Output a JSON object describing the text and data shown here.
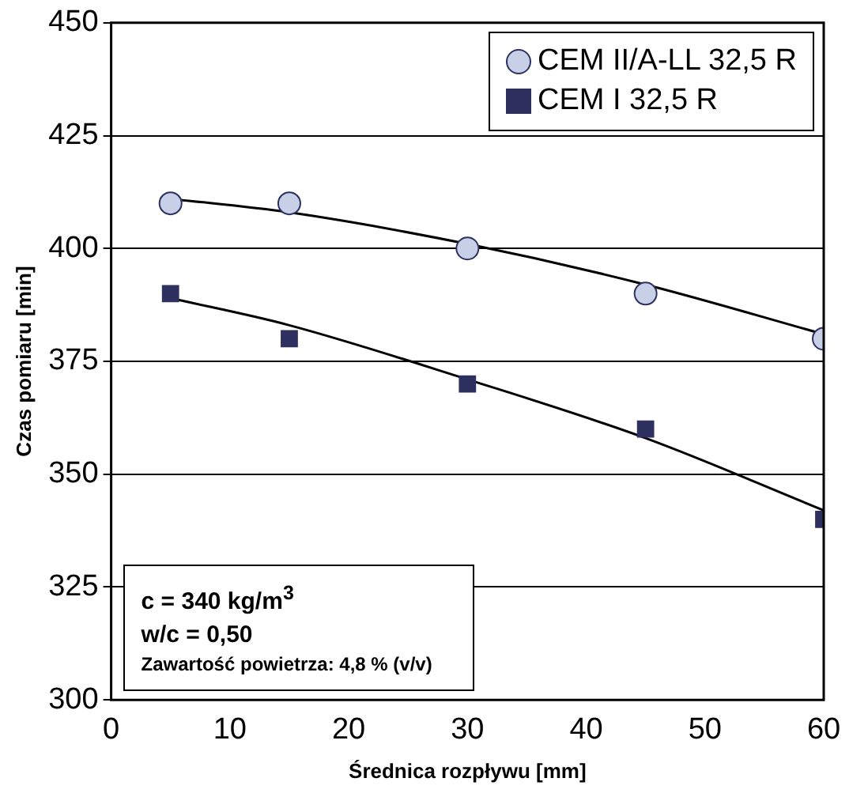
{
  "chart_data": {
    "type": "scatter",
    "xlabel": "Średnica rozpływu [mm]",
    "ylabel": "Czas pomiaru [min]",
    "xlim": [
      0,
      60
    ],
    "xticks": [
      0,
      10,
      20,
      30,
      40,
      50,
      60
    ],
    "ylim": [
      300,
      450
    ],
    "yticks": [
      300,
      325,
      350,
      375,
      400,
      425,
      450
    ],
    "grid": "y",
    "legend": "top right",
    "series": [
      {
        "name": "CEM II/A-LL 32,5 R",
        "color": "#c8d0e8",
        "marker": "circle",
        "x": [
          5,
          15,
          30,
          45,
          60
        ],
        "values": [
          410,
          410,
          400,
          390,
          380
        ]
      },
      {
        "name": "CEM I 32,5 R",
        "color": "#2e3160",
        "marker": "square",
        "x": [
          5,
          15,
          30,
          45,
          60
        ],
        "values": [
          390,
          380,
          370,
          360,
          340
        ]
      },
      {
        "type": "line",
        "color": "#000000",
        "marker": "none",
        "x": [
          5,
          15,
          30,
          45,
          60
        ],
        "values": [
          411,
          408,
          401,
          392,
          381
        ]
      },
      {
        "type": "line",
        "color": "#000000",
        "marker": "none",
        "x": [
          5,
          15,
          30,
          45,
          60
        ],
        "values": [
          389,
          383,
          371,
          358,
          342
        ]
      }
    ],
    "annotations": [
      "c = 340 kg/m$^{3}$",
      "w/c = 0,50",
      "Zawartość powietrza: 4,8 % (v/v)"
    ]
  }
}
